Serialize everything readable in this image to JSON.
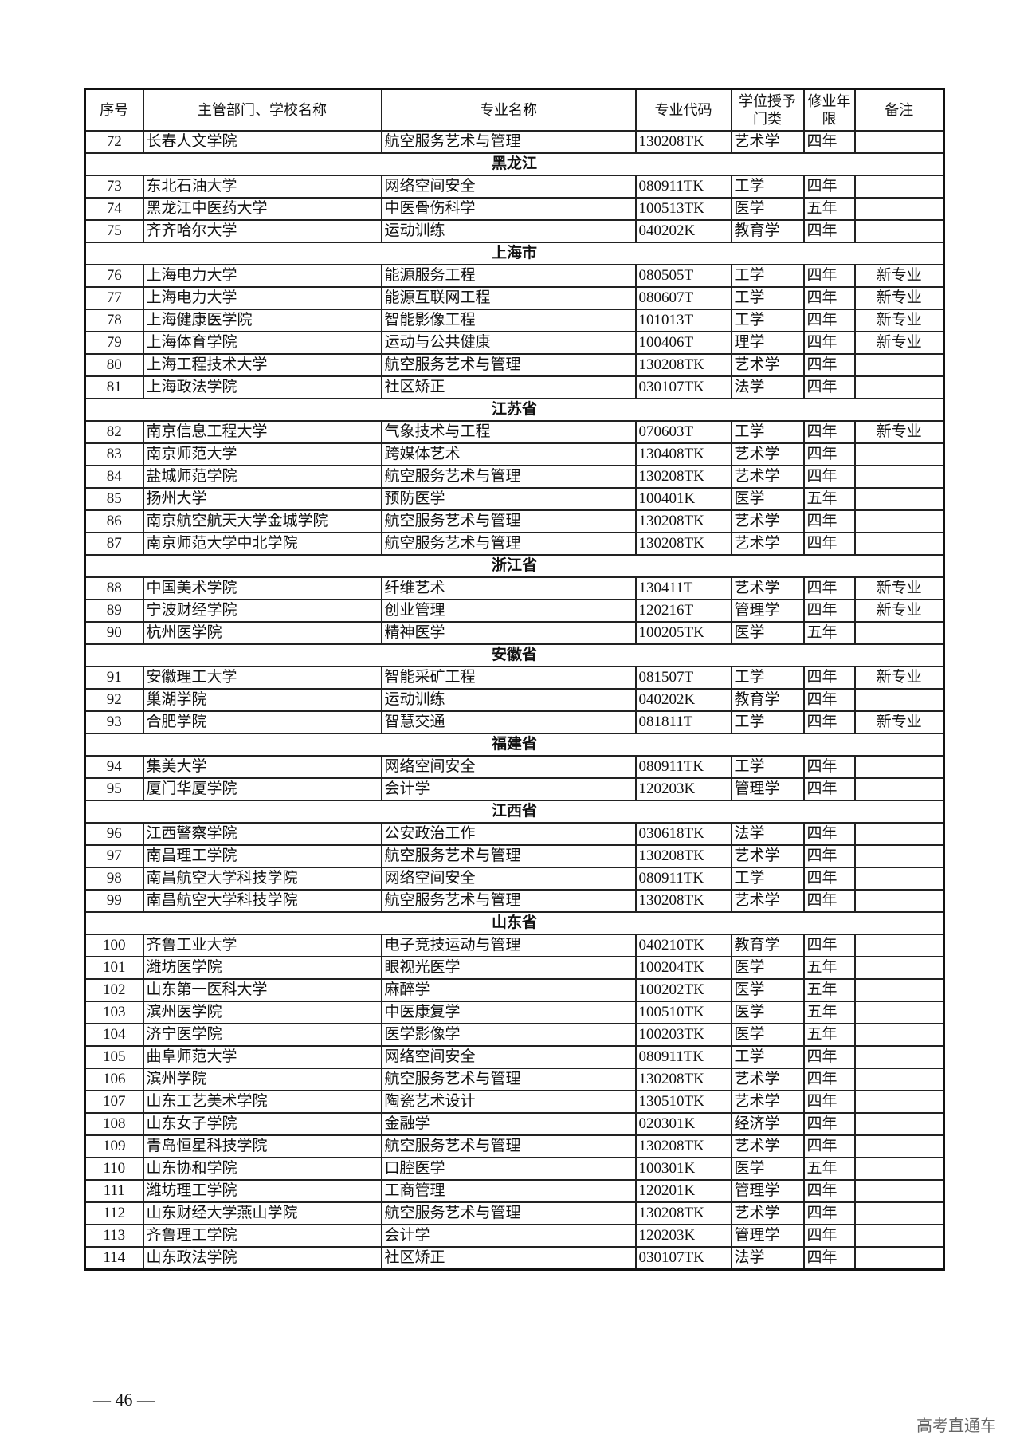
{
  "headers": [
    "序号",
    "主管部门、学校名称",
    "专业名称",
    "专业代码",
    "学位授予门类",
    "修业年限",
    "备注"
  ],
  "sections": [
    {
      "province": null,
      "rows": [
        [
          "72",
          "长春人文学院",
          "航空服务艺术与管理",
          "130208TK",
          "艺术学",
          "四年",
          ""
        ]
      ]
    },
    {
      "province": "黑龙江",
      "rows": [
        [
          "73",
          "东北石油大学",
          "网络空间安全",
          "080911TK",
          "工学",
          "四年",
          ""
        ],
        [
          "74",
          "黑龙江中医药大学",
          "中医骨伤科学",
          "100513TK",
          "医学",
          "五年",
          ""
        ],
        [
          "75",
          "齐齐哈尔大学",
          "运动训练",
          "040202K",
          "教育学",
          "四年",
          ""
        ]
      ]
    },
    {
      "province": "上海市",
      "rows": [
        [
          "76",
          "上海电力大学",
          "能源服务工程",
          "080505T",
          "工学",
          "四年",
          "新专业"
        ],
        [
          "77",
          "上海电力大学",
          "能源互联网工程",
          "080607T",
          "工学",
          "四年",
          "新专业"
        ],
        [
          "78",
          "上海健康医学院",
          "智能影像工程",
          "101013T",
          "工学",
          "四年",
          "新专业"
        ],
        [
          "79",
          "上海体育学院",
          "运动与公共健康",
          "100406T",
          "理学",
          "四年",
          "新专业"
        ],
        [
          "80",
          "上海工程技术大学",
          "航空服务艺术与管理",
          "130208TK",
          "艺术学",
          "四年",
          ""
        ],
        [
          "81",
          "上海政法学院",
          "社区矫正",
          "030107TK",
          "法学",
          "四年",
          ""
        ]
      ]
    },
    {
      "province": "江苏省",
      "rows": [
        [
          "82",
          "南京信息工程大学",
          "气象技术与工程",
          "070603T",
          "工学",
          "四年",
          "新专业"
        ],
        [
          "83",
          "南京师范大学",
          "跨媒体艺术",
          "130408TK",
          "艺术学",
          "四年",
          ""
        ],
        [
          "84",
          "盐城师范学院",
          "航空服务艺术与管理",
          "130208TK",
          "艺术学",
          "四年",
          ""
        ],
        [
          "85",
          "扬州大学",
          "预防医学",
          "100401K",
          "医学",
          "五年",
          ""
        ],
        [
          "86",
          "南京航空航天大学金城学院",
          "航空服务艺术与管理",
          "130208TK",
          "艺术学",
          "四年",
          ""
        ],
        [
          "87",
          "南京师范大学中北学院",
          "航空服务艺术与管理",
          "130208TK",
          "艺术学",
          "四年",
          ""
        ]
      ]
    },
    {
      "province": "浙江省",
      "rows": [
        [
          "88",
          "中国美术学院",
          "纤维艺术",
          "130411T",
          "艺术学",
          "四年",
          "新专业"
        ],
        [
          "89",
          "宁波财经学院",
          "创业管理",
          "120216T",
          "管理学",
          "四年",
          "新专业"
        ],
        [
          "90",
          "杭州医学院",
          "精神医学",
          "100205TK",
          "医学",
          "五年",
          ""
        ]
      ]
    },
    {
      "province": "安徽省",
      "rows": [
        [
          "91",
          "安徽理工大学",
          "智能采矿工程",
          "081507T",
          "工学",
          "四年",
          "新专业"
        ],
        [
          "92",
          "巢湖学院",
          "运动训练",
          "040202K",
          "教育学",
          "四年",
          ""
        ],
        [
          "93",
          "合肥学院",
          "智慧交通",
          "081811T",
          "工学",
          "四年",
          "新专业"
        ]
      ]
    },
    {
      "province": "福建省",
      "rows": [
        [
          "94",
          "集美大学",
          "网络空间安全",
          "080911TK",
          "工学",
          "四年",
          ""
        ],
        [
          "95",
          "厦门华厦学院",
          "会计学",
          "120203K",
          "管理学",
          "四年",
          ""
        ]
      ]
    },
    {
      "province": "江西省",
      "rows": [
        [
          "96",
          "江西警察学院",
          "公安政治工作",
          "030618TK",
          "法学",
          "四年",
          ""
        ],
        [
          "97",
          "南昌理工学院",
          "航空服务艺术与管理",
          "130208TK",
          "艺术学",
          "四年",
          ""
        ],
        [
          "98",
          "南昌航空大学科技学院",
          "网络空间安全",
          "080911TK",
          "工学",
          "四年",
          ""
        ],
        [
          "99",
          "南昌航空大学科技学院",
          "航空服务艺术与管理",
          "130208TK",
          "艺术学",
          "四年",
          ""
        ]
      ]
    },
    {
      "province": "山东省",
      "rows": [
        [
          "100",
          "齐鲁工业大学",
          "电子竞技运动与管理",
          "040210TK",
          "教育学",
          "四年",
          ""
        ],
        [
          "101",
          "潍坊医学院",
          "眼视光医学",
          "100204TK",
          "医学",
          "五年",
          ""
        ],
        [
          "102",
          "山东第一医科大学",
          "麻醉学",
          "100202TK",
          "医学",
          "五年",
          ""
        ],
        [
          "103",
          "滨州医学院",
          "中医康复学",
          "100510TK",
          "医学",
          "五年",
          ""
        ],
        [
          "104",
          "济宁医学院",
          "医学影像学",
          "100203TK",
          "医学",
          "五年",
          ""
        ],
        [
          "105",
          "曲阜师范大学",
          "网络空间安全",
          "080911TK",
          "工学",
          "四年",
          ""
        ],
        [
          "106",
          "滨州学院",
          "航空服务艺术与管理",
          "130208TK",
          "艺术学",
          "四年",
          ""
        ],
        [
          "107",
          "山东工艺美术学院",
          "陶瓷艺术设计",
          "130510TK",
          "艺术学",
          "四年",
          ""
        ],
        [
          "108",
          "山东女子学院",
          "金融学",
          "020301K",
          "经济学",
          "四年",
          ""
        ],
        [
          "109",
          "青岛恒星科技学院",
          "航空服务艺术与管理",
          "130208TK",
          "艺术学",
          "四年",
          ""
        ],
        [
          "110",
          "山东协和学院",
          "口腔医学",
          "100301K",
          "医学",
          "五年",
          ""
        ],
        [
          "111",
          "潍坊理工学院",
          "工商管理",
          "120201K",
          "管理学",
          "四年",
          ""
        ],
        [
          "112",
          "山东财经大学燕山学院",
          "航空服务艺术与管理",
          "130208TK",
          "艺术学",
          "四年",
          ""
        ],
        [
          "113",
          "齐鲁理工学院",
          "会计学",
          "120203K",
          "管理学",
          "四年",
          ""
        ],
        [
          "114",
          "山东政法学院",
          "社区矫正",
          "030107TK",
          "法学",
          "四年",
          ""
        ]
      ]
    }
  ],
  "footer": {
    "page_number": "— 46 —",
    "watermark": "高考直通车"
  }
}
